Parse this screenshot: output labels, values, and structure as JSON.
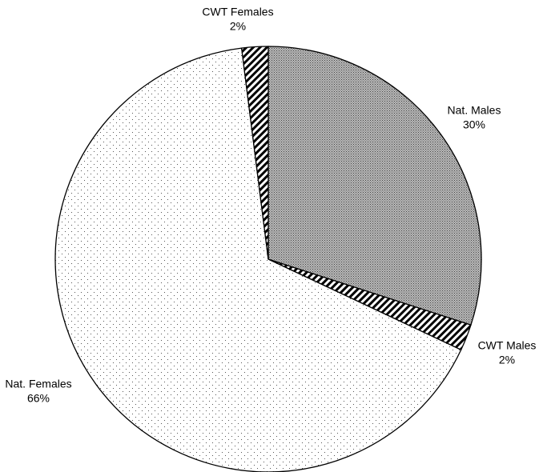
{
  "chart_data": {
    "type": "pie",
    "categories": [
      "Nat. Males",
      "CWT Males",
      "Nat. Females",
      "CWT Females"
    ],
    "values": [
      30,
      2,
      66,
      2
    ],
    "value_labels": [
      "30%",
      "2%",
      "66%",
      "2%"
    ],
    "patterns": [
      "crosshatch",
      "stripes",
      "dots",
      "stripes"
    ]
  }
}
